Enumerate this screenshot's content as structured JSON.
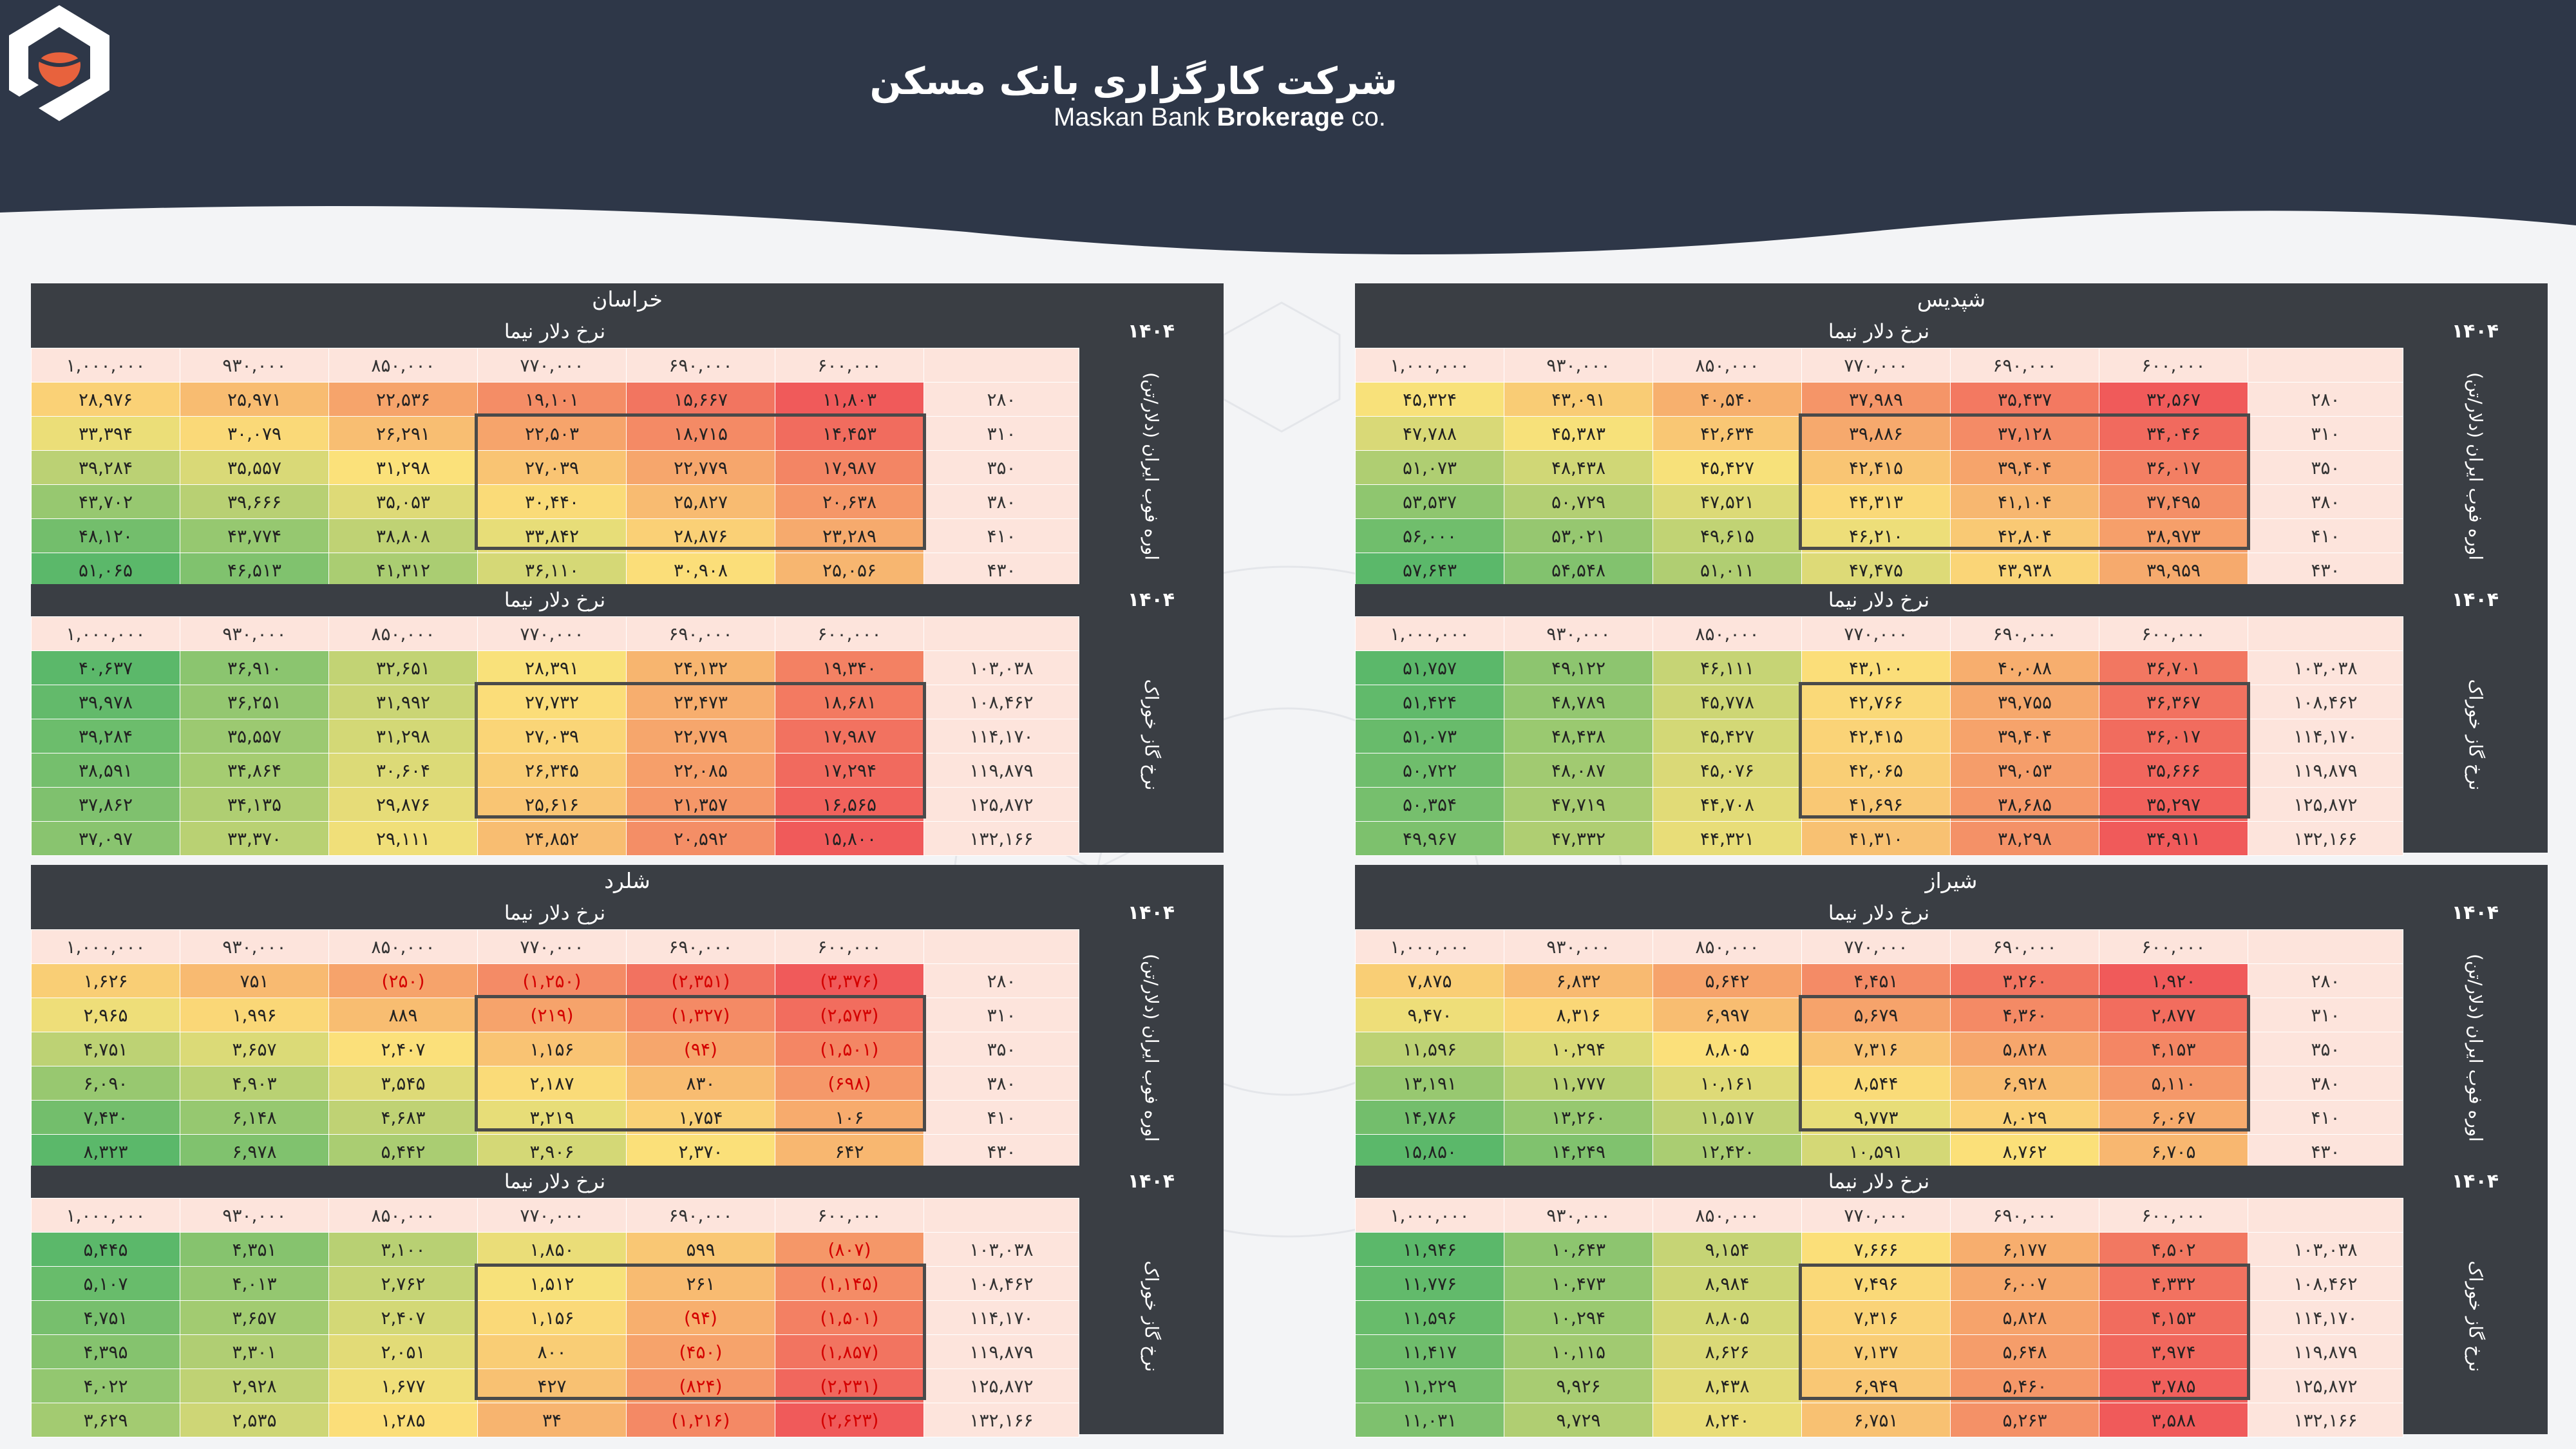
{
  "brand": {
    "name_fa": "شرکت کارگزاری بانک مسکن",
    "name_en_part1": "Maskan Bank",
    "name_en_part2": "Brokerage",
    "name_en_part3": "co.",
    "logo_color": "#e8623d",
    "header_color": "#2e3748"
  },
  "colors": {
    "header_dark": "#3a3e44",
    "cell_header": "#fde4dc",
    "negative_text": "#d40000",
    "scale_red": "#f05a5a",
    "scale_yellow": "#fbe27a",
    "scale_green": "#5bb86a"
  },
  "panels": [
    {
      "name": "شپدیس",
      "blocks": [
        {
          "year": "۱۴۰۴",
          "col_title": "نرخ دلار نیما",
          "row_title": "اوره فوب ایران (دلار/تن)",
          "cols": [
            "۶۰۰,۰۰۰",
            "۶۹۰,۰۰۰",
            "۷۷۰,۰۰۰",
            "۸۵۰,۰۰۰",
            "۹۳۰,۰۰۰",
            "۱,۰۰۰,۰۰۰"
          ],
          "rows": [
            "۲۸۰",
            "۳۱۰",
            "۳۵۰",
            "۳۸۰",
            "۴۱۰",
            "۴۳۰"
          ],
          "values": [
            [
              "۳۲,۵۶۷",
              "۳۵,۴۳۷",
              "۳۷,۹۸۹",
              "۴۰,۵۴۰",
              "۴۳,۰۹۱",
              "۴۵,۳۲۴"
            ],
            [
              "۳۴,۰۴۶",
              "۳۷,۱۲۸",
              "۳۹,۸۸۶",
              "۴۲,۶۳۴",
              "۴۵,۳۸۳",
              "۴۷,۷۸۸"
            ],
            [
              "۳۶,۰۱۷",
              "۳۹,۴۰۴",
              "۴۲,۴۱۵",
              "۴۵,۴۲۷",
              "۴۸,۴۳۸",
              "۵۱,۰۷۳"
            ],
            [
              "۳۷,۴۹۵",
              "۴۱,۱۰۴",
              "۴۴,۳۱۳",
              "۴۷,۵۲۱",
              "۵۰,۷۲۹",
              "۵۳,۵۳۷"
            ],
            [
              "۳۸,۹۷۳",
              "۴۲,۸۰۴",
              "۴۶,۲۱۰",
              "۴۹,۶۱۵",
              "۵۳,۰۲۱",
              "۵۶,۰۰۰"
            ],
            [
              "۳۹,۹۵۹",
              "۴۳,۹۳۸",
              "۴۷,۴۷۵",
              "۵۱,۰۱۱",
              "۵۴,۵۴۸",
              "۵۷,۶۴۳"
            ]
          ]
        },
        {
          "year": "۱۴۰۴",
          "col_title": "نرخ دلار نیما",
          "row_title": "نرخ گاز خوراک",
          "cols": [
            "۶۰۰,۰۰۰",
            "۶۹۰,۰۰۰",
            "۷۷۰,۰۰۰",
            "۸۵۰,۰۰۰",
            "۹۳۰,۰۰۰",
            "۱,۰۰۰,۰۰۰"
          ],
          "rows": [
            "۱۰۳,۰۳۸",
            "۱۰۸,۴۶۲",
            "۱۱۴,۱۷۰",
            "۱۱۹,۸۷۹",
            "۱۲۵,۸۷۲",
            "۱۳۲,۱۶۶"
          ],
          "values": [
            [
              "۳۶,۷۰۱",
              "۴۰,۰۸۸",
              "۴۳,۱۰۰",
              "۴۶,۱۱۱",
              "۴۹,۱۲۲",
              "۵۱,۷۵۷"
            ],
            [
              "۳۶,۳۶۷",
              "۳۹,۷۵۵",
              "۴۲,۷۶۶",
              "۴۵,۷۷۸",
              "۴۸,۷۸۹",
              "۵۱,۴۲۴"
            ],
            [
              "۳۶,۰۱۷",
              "۳۹,۴۰۴",
              "۴۲,۴۱۵",
              "۴۵,۴۲۷",
              "۴۸,۴۳۸",
              "۵۱,۰۷۳"
            ],
            [
              "۳۵,۶۶۶",
              "۳۹,۰۵۳",
              "۴۲,۰۶۵",
              "۴۵,۰۷۶",
              "۴۸,۰۸۷",
              "۵۰,۷۲۲"
            ],
            [
              "۳۵,۲۹۷",
              "۳۸,۶۸۵",
              "۴۱,۶۹۶",
              "۴۴,۷۰۸",
              "۴۷,۷۱۹",
              "۵۰,۳۵۴"
            ],
            [
              "۳۴,۹۱۱",
              "۳۸,۲۹۸",
              "۴۱,۳۱۰",
              "۴۴,۳۲۱",
              "۴۷,۳۳۲",
              "۴۹,۹۶۷"
            ]
          ]
        }
      ]
    },
    {
      "name": "خراسان",
      "blocks": [
        {
          "year": "۱۴۰۴",
          "col_title": "نرخ دلار نیما",
          "row_title": "اوره فوب ایران (دلار/تن)",
          "cols": [
            "۶۰۰,۰۰۰",
            "۶۹۰,۰۰۰",
            "۷۷۰,۰۰۰",
            "۸۵۰,۰۰۰",
            "۹۳۰,۰۰۰",
            "۱,۰۰۰,۰۰۰"
          ],
          "rows": [
            "۲۸۰",
            "۳۱۰",
            "۳۵۰",
            "۳۸۰",
            "۴۱۰",
            "۴۳۰"
          ],
          "values": [
            [
              "۱۱,۸۰۳",
              "۱۵,۶۶۷",
              "۱۹,۱۰۱",
              "۲۲,۵۳۶",
              "۲۵,۹۷۱",
              "۲۸,۹۷۶"
            ],
            [
              "۱۴,۴۵۳",
              "۱۸,۷۱۵",
              "۲۲,۵۰۳",
              "۲۶,۲۹۱",
              "۳۰,۰۷۹",
              "۳۳,۳۹۴"
            ],
            [
              "۱۷,۹۸۷",
              "۲۲,۷۷۹",
              "۲۷,۰۳۹",
              "۳۱,۲۹۸",
              "۳۵,۵۵۷",
              "۳۹,۲۸۴"
            ],
            [
              "۲۰,۶۳۸",
              "۲۵,۸۲۷",
              "۳۰,۴۴۰",
              "۳۵,۰۵۳",
              "۳۹,۶۶۶",
              "۴۳,۷۰۲"
            ],
            [
              "۲۳,۲۸۹",
              "۲۸,۸۷۶",
              "۳۳,۸۴۲",
              "۳۸,۸۰۸",
              "۴۳,۷۷۴",
              "۴۸,۱۲۰"
            ],
            [
              "۲۵,۰۵۶",
              "۳۰,۹۰۸",
              "۳۶,۱۱۰",
              "۴۱,۳۱۲",
              "۴۶,۵۱۳",
              "۵۱,۰۶۵"
            ]
          ]
        },
        {
          "year": "۱۴۰۴",
          "col_title": "نرخ دلار نیما",
          "row_title": "نرخ گاز خوراک",
          "cols": [
            "۶۰۰,۰۰۰",
            "۶۹۰,۰۰۰",
            "۷۷۰,۰۰۰",
            "۸۵۰,۰۰۰",
            "۹۳۰,۰۰۰",
            "۱,۰۰۰,۰۰۰"
          ],
          "rows": [
            "۱۰۳,۰۳۸",
            "۱۰۸,۴۶۲",
            "۱۱۴,۱۷۰",
            "۱۱۹,۸۷۹",
            "۱۲۵,۸۷۲",
            "۱۳۲,۱۶۶"
          ],
          "values": [
            [
              "۱۹,۳۴۰",
              "۲۴,۱۳۲",
              "۲۸,۳۹۱",
              "۳۲,۶۵۱",
              "۳۶,۹۱۰",
              "۴۰,۶۳۷"
            ],
            [
              "۱۸,۶۸۱",
              "۲۳,۴۷۳",
              "۲۷,۷۳۲",
              "۳۱,۹۹۲",
              "۳۶,۲۵۱",
              "۳۹,۹۷۸"
            ],
            [
              "۱۷,۹۸۷",
              "۲۲,۷۷۹",
              "۲۷,۰۳۹",
              "۳۱,۲۹۸",
              "۳۵,۵۵۷",
              "۳۹,۲۸۴"
            ],
            [
              "۱۷,۲۹۴",
              "۲۲,۰۸۵",
              "۲۶,۳۴۵",
              "۳۰,۶۰۴",
              "۳۴,۸۶۴",
              "۳۸,۵۹۱"
            ],
            [
              "۱۶,۵۶۵",
              "۲۱,۳۵۷",
              "۲۵,۶۱۶",
              "۲۹,۸۷۶",
              "۳۴,۱۳۵",
              "۳۷,۸۶۲"
            ],
            [
              "۱۵,۸۰۰",
              "۲۰,۵۹۲",
              "۲۴,۸۵۲",
              "۲۹,۱۱۱",
              "۳۳,۳۷۰",
              "۳۷,۰۹۷"
            ]
          ]
        }
      ]
    },
    {
      "name": "شیراز",
      "blocks": [
        {
          "year": "۱۴۰۴",
          "col_title": "نرخ دلار نیما",
          "row_title": "اوره فوب ایران (دلار/تن)",
          "cols": [
            "۶۰۰,۰۰۰",
            "۶۹۰,۰۰۰",
            "۷۷۰,۰۰۰",
            "۸۵۰,۰۰۰",
            "۹۳۰,۰۰۰",
            "۱,۰۰۰,۰۰۰"
          ],
          "rows": [
            "۲۸۰",
            "۳۱۰",
            "۳۵۰",
            "۳۸۰",
            "۴۱۰",
            "۴۳۰"
          ],
          "values": [
            [
              "۱,۹۲۰",
              "۳,۲۶۰",
              "۴,۴۵۱",
              "۵,۶۴۲",
              "۶,۸۳۲",
              "۷,۸۷۵"
            ],
            [
              "۲,۸۷۷",
              "۴,۳۶۰",
              "۵,۶۷۹",
              "۶,۹۹۷",
              "۸,۳۱۶",
              "۹,۴۷۰"
            ],
            [
              "۴,۱۵۳",
              "۵,۸۲۸",
              "۷,۳۱۶",
              "۸,۸۰۵",
              "۱۰,۲۹۴",
              "۱۱,۵۹۶"
            ],
            [
              "۵,۱۱۰",
              "۶,۹۲۸",
              "۸,۵۴۴",
              "۱۰,۱۶۱",
              "۱۱,۷۷۷",
              "۱۳,۱۹۱"
            ],
            [
              "۶,۰۶۷",
              "۸,۰۲۹",
              "۹,۷۷۳",
              "۱۱,۵۱۷",
              "۱۳,۲۶۰",
              "۱۴,۷۸۶"
            ],
            [
              "۶,۷۰۵",
              "۸,۷۶۲",
              "۱۰,۵۹۱",
              "۱۲,۴۲۰",
              "۱۴,۲۴۹",
              "۱۵,۸۵۰"
            ]
          ]
        },
        {
          "year": "۱۴۰۴",
          "col_title": "نرخ دلار نیما",
          "row_title": "نرخ گاز خوراک",
          "cols": [
            "۶۰۰,۰۰۰",
            "۶۹۰,۰۰۰",
            "۷۷۰,۰۰۰",
            "۸۵۰,۰۰۰",
            "۹۳۰,۰۰۰",
            "۱,۰۰۰,۰۰۰"
          ],
          "rows": [
            "۱۰۳,۰۳۸",
            "۱۰۸,۴۶۲",
            "۱۱۴,۱۷۰",
            "۱۱۹,۸۷۹",
            "۱۲۵,۸۷۲",
            "۱۳۲,۱۶۶"
          ],
          "values": [
            [
              "۴,۵۰۲",
              "۶,۱۷۷",
              "۷,۶۶۶",
              "۹,۱۵۴",
              "۱۰,۶۴۳",
              "۱۱,۹۴۶"
            ],
            [
              "۴,۳۳۲",
              "۶,۰۰۷",
              "۷,۴۹۶",
              "۸,۹۸۴",
              "۱۰,۴۷۳",
              "۱۱,۷۷۶"
            ],
            [
              "۴,۱۵۳",
              "۵,۸۲۸",
              "۷,۳۱۶",
              "۸,۸۰۵",
              "۱۰,۲۹۴",
              "۱۱,۵۹۶"
            ],
            [
              "۳,۹۷۴",
              "۵,۶۴۸",
              "۷,۱۳۷",
              "۸,۶۲۶",
              "۱۰,۱۱۵",
              "۱۱,۴۱۷"
            ],
            [
              "۳,۷۸۵",
              "۵,۴۶۰",
              "۶,۹۴۹",
              "۸,۴۳۸",
              "۹,۹۲۶",
              "۱۱,۲۲۹"
            ],
            [
              "۳,۵۸۸",
              "۵,۲۶۳",
              "۶,۷۵۱",
              "۸,۲۴۰",
              "۹,۷۲۹",
              "۱۱,۰۳۱"
            ]
          ]
        }
      ]
    },
    {
      "name": "شلرد",
      "blocks": [
        {
          "year": "۱۴۰۴",
          "col_title": "نرخ دلار نیما",
          "row_title": "اوره فوب ایران (دلار/تن)",
          "cols": [
            "۶۰۰,۰۰۰",
            "۶۹۰,۰۰۰",
            "۷۷۰,۰۰۰",
            "۸۵۰,۰۰۰",
            "۹۳۰,۰۰۰",
            "۱,۰۰۰,۰۰۰"
          ],
          "rows": [
            "۲۸۰",
            "۳۱۰",
            "۳۵۰",
            "۳۸۰",
            "۴۱۰",
            "۴۳۰"
          ],
          "values": [
            [
              "(۳,۳۷۶)",
              "(۲,۳۵۱)",
              "(۱,۲۵۰)",
              "(۲۵۰)",
              "۷۵۱",
              "۱,۶۲۶"
            ],
            [
              "(۲,۵۷۳)",
              "(۱,۳۲۷)",
              "(۲۱۹)",
              "۸۸۹",
              "۱,۹۹۶",
              "۲,۹۶۵"
            ],
            [
              "(۱,۵۰۱)",
              "(۹۴)",
              "۱,۱۵۶",
              "۲,۴۰۷",
              "۳,۶۵۷",
              "۴,۷۵۱"
            ],
            [
              "(۶۹۸)",
              "۸۳۰",
              "۲,۱۸۷",
              "۳,۵۴۵",
              "۴,۹۰۳",
              "۶,۰۹۰"
            ],
            [
              "۱۰۶",
              "۱,۷۵۴",
              "۳,۲۱۹",
              "۴,۶۸۳",
              "۶,۱۴۸",
              "۷,۴۳۰"
            ],
            [
              "۶۴۲",
              "۲,۳۷۰",
              "۳,۹۰۶",
              "۵,۴۴۲",
              "۶,۹۷۸",
              "۸,۳۲۳"
            ]
          ]
        },
        {
          "year": "۱۴۰۴",
          "col_title": "نرخ دلار نیما",
          "row_title": "نرخ گاز خوراک",
          "cols": [
            "۶۰۰,۰۰۰",
            "۶۹۰,۰۰۰",
            "۷۷۰,۰۰۰",
            "۸۵۰,۰۰۰",
            "۹۳۰,۰۰۰",
            "۱,۰۰۰,۰۰۰"
          ],
          "rows": [
            "۱۰۳,۰۳۸",
            "۱۰۸,۴۶۲",
            "۱۱۴,۱۷۰",
            "۱۱۹,۸۷۹",
            "۱۲۵,۸۷۲",
            "۱۳۲,۱۶۶"
          ],
          "values": [
            [
              "(۸۰۷)",
              "۵۹۹",
              "۱,۸۵۰",
              "۳,۱۰۰",
              "۴,۳۵۱",
              "۵,۴۴۵"
            ],
            [
              "(۱,۱۴۵)",
              "۲۶۱",
              "۱,۵۱۲",
              "۲,۷۶۲",
              "۴,۰۱۳",
              "۵,۱۰۷"
            ],
            [
              "(۱,۵۰۱)",
              "(۹۴)",
              "۱,۱۵۶",
              "۲,۴۰۷",
              "۳,۶۵۷",
              "۴,۷۵۱"
            ],
            [
              "(۱,۸۵۷)",
              "(۴۵۰)",
              "۸۰۰",
              "۲,۰۵۱",
              "۳,۳۰۱",
              "۴,۳۹۵"
            ],
            [
              "(۲,۲۳۱)",
              "(۸۲۴)",
              "۴۲۷",
              "۱,۶۷۷",
              "۲,۹۲۸",
              "۴,۰۲۲"
            ],
            [
              "(۲,۶۲۳)",
              "(۱,۲۱۶)",
              "۳۴",
              "۱,۲۸۵",
              "۲,۵۳۵",
              "۳,۶۲۹"
            ]
          ]
        }
      ]
    }
  ]
}
